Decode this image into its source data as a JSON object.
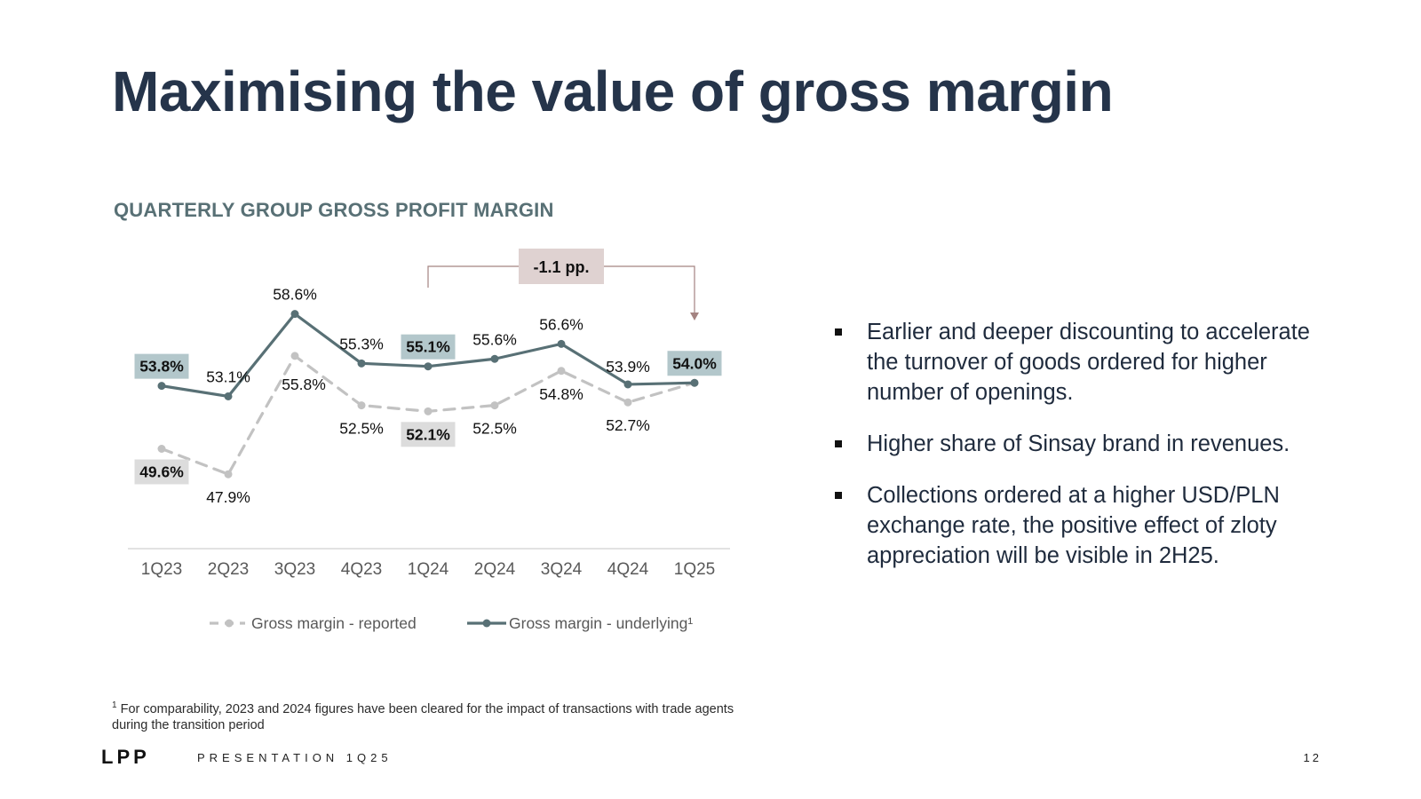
{
  "slide": {
    "title": "Maximising the value of gross margin",
    "subtitle": "QUARTERLY GROUP GROSS PROFIT MARGIN",
    "bullets": [
      "Earlier and deeper discounting to accelerate the turnover of goods ordered for higher number of openings.",
      "Higher share of Sinsay brand in revenues.",
      "Collections ordered at a higher USD/PLN exchange rate, the positive effect of zloty appreciation will be visible in 2H25."
    ],
    "footnote_marker": "1",
    "footnote": "For comparability, 2023 and 2024 figures have been cleared for the impact of transactions with trade agents during the transition period",
    "logo": "LPP",
    "presentation_label": "PRESENTATION 1Q25",
    "page_number": "12"
  },
  "chart_data": {
    "type": "line",
    "categories": [
      "1Q23",
      "2Q23",
      "3Q23",
      "4Q23",
      "1Q24",
      "2Q24",
      "3Q24",
      "4Q24",
      "1Q25"
    ],
    "series": [
      {
        "name": "Gross margin - reported",
        "values": [
          49.6,
          47.9,
          55.8,
          52.5,
          52.1,
          52.5,
          54.8,
          52.7,
          54.0
        ],
        "labels": [
          "49.6%",
          "47.9%",
          "55.8%",
          "52.5%",
          "52.1%",
          "52.5%",
          "54.8%",
          "52.7%",
          ""
        ],
        "color": "#c2c2c2",
        "style": "dashed"
      },
      {
        "name": "Gross margin - underlying¹",
        "values": [
          53.8,
          53.1,
          58.6,
          55.3,
          55.1,
          55.6,
          56.6,
          53.9,
          54.0
        ],
        "labels": [
          "53.8%",
          "53.1%",
          "58.6%",
          "55.3%",
          "55.1%",
          "55.6%",
          "56.6%",
          "53.9%",
          "54.0%"
        ],
        "color": "#587075",
        "style": "solid"
      }
    ],
    "highlighted_labels": [
      {
        "series": 1,
        "index": 0,
        "bg": "#b3c7cb"
      },
      {
        "series": 1,
        "index": 4,
        "bg": "#b3c7cb"
      },
      {
        "series": 1,
        "index": 8,
        "bg": "#b3c7cb"
      },
      {
        "series": 0,
        "index": 0,
        "bg": "#dcdcdc"
      },
      {
        "series": 0,
        "index": 4,
        "bg": "#dcdcdc"
      }
    ],
    "annotation": {
      "text": "-1.1 pp.",
      "from": "1Q24",
      "to": "1Q25",
      "bg": "#dfd2d1",
      "line_color": "#a48381"
    },
    "ylim": [
      44,
      60
    ],
    "legend": "bottom",
    "grid": false
  }
}
